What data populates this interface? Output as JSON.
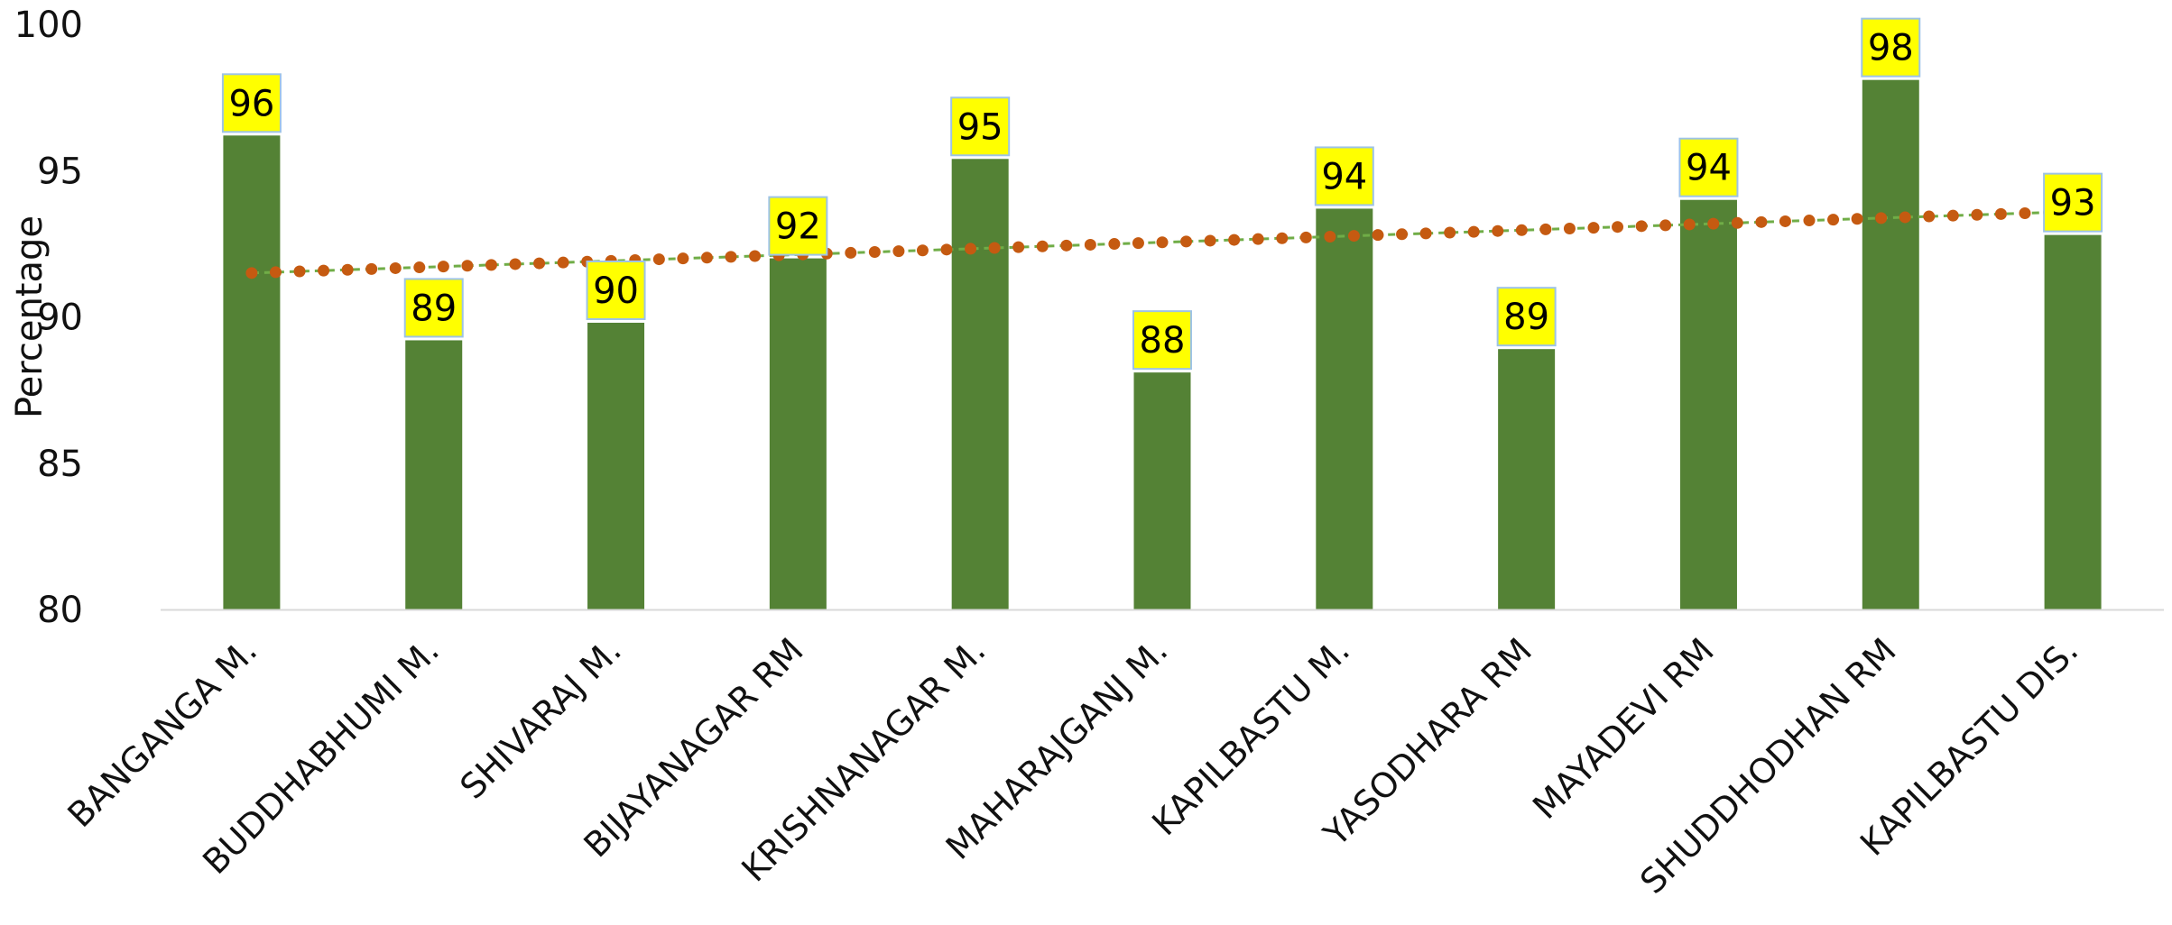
{
  "chart_data": {
    "type": "bar",
    "categories": [
      "BANGANGA M.",
      "BUDDHABHUMI M.",
      "SHIVARAJ M.",
      "BIJAYANAGAR RM",
      "KRISHNANAGAR M.",
      "MAHARAJGANJ M.",
      "KAPILBASTU M.",
      "YASODHARA RM",
      "MAYADEVI RM",
      "SHUDDHODHAN RM",
      "KAPILBASTU DIS."
    ],
    "values": [
      96.2,
      89.2,
      89.8,
      92.0,
      95.4,
      88.1,
      93.7,
      88.9,
      94.0,
      98.1,
      92.8
    ],
    "data_labels": [
      "96",
      "89",
      "90",
      "92",
      "95",
      "88",
      "94",
      "89",
      "94",
      "98",
      "93"
    ],
    "trendline": {
      "kind": "linear",
      "start": 91.5,
      "end": 93.6
    },
    "title": "",
    "xlabel": "",
    "ylabel": "Percentage",
    "ylim": [
      80,
      100
    ],
    "yticks": [
      80,
      85,
      90,
      95,
      100
    ],
    "grid": false,
    "legend": "none",
    "colors": {
      "bar": "#548235",
      "trend_dot": "#C55A11",
      "trend_dash": "#70AD47",
      "label_bg": "#FFFF00",
      "label_border": "#9DC3E6",
      "axis": "#D9D9D9"
    }
  }
}
